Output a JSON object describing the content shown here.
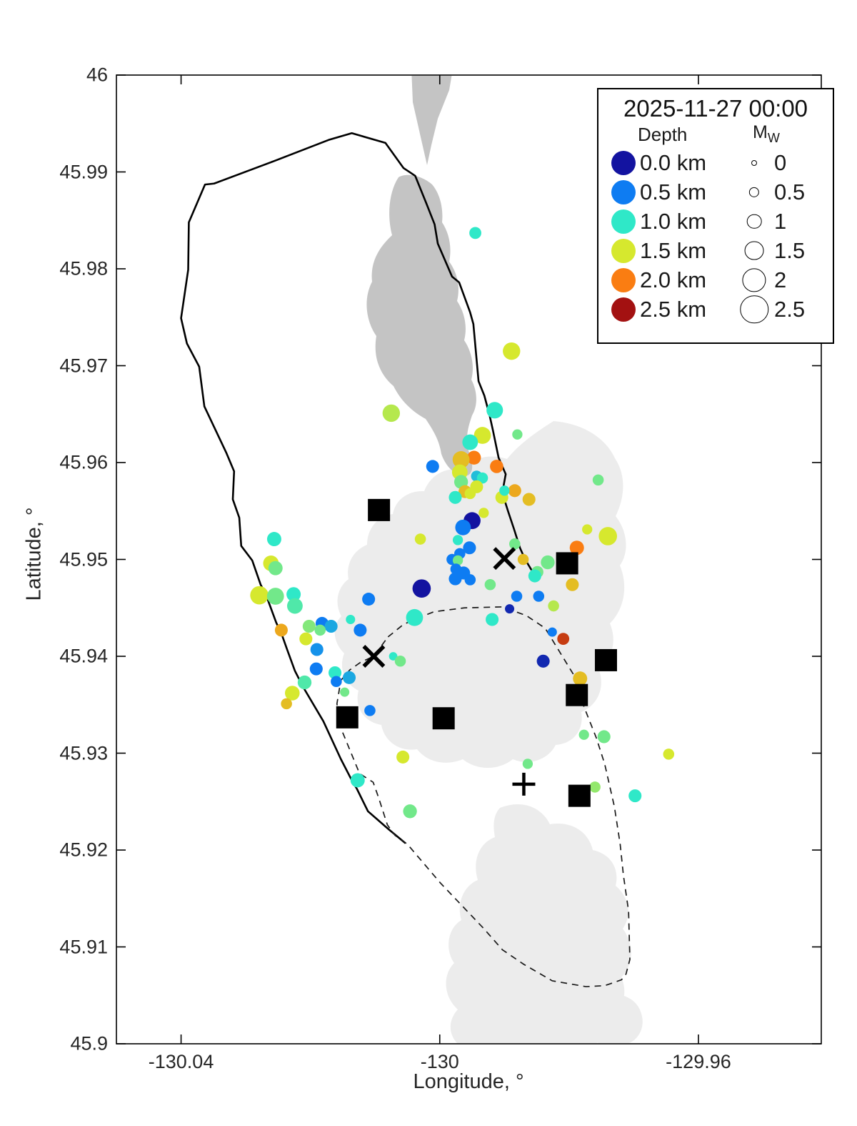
{
  "axes": {
    "xlabel": "Longitude, °",
    "ylabel": "Latitude, °",
    "xlim": [
      -130.05,
      -129.941
    ],
    "ylim": [
      45.9,
      46.0
    ],
    "x_ticks": [
      -130.04,
      -130,
      -129.96
    ],
    "x_tick_labels": [
      "-130.04",
      "-130",
      "-129.96"
    ],
    "y_ticks": [
      46,
      45.99,
      45.98,
      45.97,
      45.96,
      45.95,
      45.94,
      45.93,
      45.92,
      45.91,
      45.9
    ],
    "y_tick_labels": [
      "46",
      "45.99",
      "45.98",
      "45.97",
      "45.96",
      "45.95",
      "45.94",
      "45.93",
      "45.92",
      "45.91",
      "45.9"
    ],
    "grid": false
  },
  "legend": {
    "datetime": "2025-11-27 00:00",
    "depth_title": "Depth",
    "mag_title": "M",
    "mag_title_sub": "W",
    "depth_entries": [
      {
        "label": "0.0 km",
        "depth_km": 0.0,
        "color": "#1313A0"
      },
      {
        "label": "0.5 km",
        "depth_km": 0.5,
        "color": "#0E7CF2"
      },
      {
        "label": "1.0 km",
        "depth_km": 1.0,
        "color": "#2FE8C8"
      },
      {
        "label": "1.5 km",
        "depth_km": 1.5,
        "color": "#D6E82E"
      },
      {
        "label": "2.0 km",
        "depth_km": 2.0,
        "color": "#FA7D12"
      },
      {
        "label": "2.5 km",
        "depth_km": 2.5,
        "color": "#A31111"
      }
    ],
    "mag_entries": [
      {
        "label": "0",
        "mw": 0
      },
      {
        "label": "0.5",
        "mw": 0.5
      },
      {
        "label": "1",
        "mw": 1
      },
      {
        "label": "1.5",
        "mw": 1.5
      },
      {
        "label": "2",
        "mw": 2
      },
      {
        "label": "2.5",
        "mw": 2.5
      }
    ]
  },
  "chart_data": {
    "type": "scatter",
    "title": "2025-11-27 00:00",
    "xlabel": "Longitude, °",
    "ylabel": "Latitude, °",
    "xlim": [
      -130.05,
      -129.941
    ],
    "ylim": [
      45.9,
      46.0
    ],
    "legend_position": "upper right",
    "colormap": {
      "depths": [
        0,
        0.5,
        1.0,
        1.5,
        2.0,
        2.5
      ],
      "colors": [
        "#1313A0",
        "#0E7CF2",
        "#2FE8C8",
        "#D6E82E",
        "#FA7D12",
        "#A31111"
      ]
    },
    "size_rule": {
      "radius_px_at_mw0": 4,
      "radius_px_per_mw": 6.3
    },
    "earthquakes": {
      "columns": [
        "lon",
        "lat",
        "depth_km",
        "mw"
      ],
      "rows": [
        [
          -129.9945,
          45.9837,
          1.0,
          0.7
        ],
        [
          -129.9889,
          45.9715,
          1.5,
          1.3
        ],
        [
          -130.0075,
          45.9651,
          1.4,
          1.3
        ],
        [
          -129.9915,
          45.9654,
          1.0,
          1.2
        ],
        [
          -129.988,
          45.9629,
          1.2,
          0.5
        ],
        [
          -129.9934,
          45.9628,
          1.5,
          1.25
        ],
        [
          -129.9953,
          45.9621,
          1.0,
          1.1
        ],
        [
          -129.9947,
          45.9605,
          2.0,
          0.9
        ],
        [
          -129.9967,
          45.9603,
          1.7,
          1.25
        ],
        [
          -130.0011,
          45.9596,
          0.5,
          0.8
        ],
        [
          -129.9912,
          45.9596,
          2.0,
          0.85
        ],
        [
          -129.9969,
          45.959,
          1.5,
          1.1
        ],
        [
          -129.9943,
          45.9586,
          0.8,
          0.6
        ],
        [
          -129.9934,
          45.9584,
          1.0,
          0.6
        ],
        [
          -129.9967,
          45.958,
          1.2,
          0.9
        ],
        [
          -129.9943,
          45.9575,
          1.5,
          0.8
        ],
        [
          -129.9961,
          45.957,
          1.7,
          0.8
        ],
        [
          -129.9976,
          45.9564,
          1.0,
          0.8
        ],
        [
          -129.9953,
          45.9568,
          1.5,
          0.6
        ],
        [
          -129.9904,
          45.9564,
          1.5,
          0.8
        ],
        [
          -129.9884,
          45.9571,
          1.8,
          0.8
        ],
        [
          -129.9862,
          45.9562,
          1.7,
          0.8
        ],
        [
          -129.99,
          45.9571,
          1.0,
          0.5
        ],
        [
          -129.9932,
          45.9548,
          1.5,
          0.5
        ],
        [
          -129.995,
          45.954,
          0.0,
          1.25
        ],
        [
          -129.9964,
          45.9533,
          0.5,
          1.1
        ],
        [
          -130.003,
          45.9521,
          1.5,
          0.6
        ],
        [
          -129.9972,
          45.952,
          1.0,
          0.5
        ],
        [
          -129.9954,
          45.9512,
          0.5,
          0.8
        ],
        [
          -129.9884,
          45.9516,
          1.2,
          0.6
        ],
        [
          -129.9969,
          45.9506,
          0.5,
          0.6
        ],
        [
          -129.9981,
          45.95,
          0.5,
          0.6
        ],
        [
          -129.9972,
          45.9499,
          1.2,
          0.5
        ],
        [
          -129.9871,
          45.95,
          1.7,
          0.6
        ],
        [
          -129.9975,
          45.949,
          0.5,
          0.6
        ],
        [
          -129.9849,
          45.9487,
          1.2,
          0.7
        ],
        [
          -129.9853,
          45.9483,
          1.0,
          0.8
        ],
        [
          -129.9976,
          45.948,
          0.5,
          0.8
        ],
        [
          -129.9953,
          45.9479,
          0.5,
          0.6
        ],
        [
          -129.9963,
          45.9486,
          0.5,
          0.8
        ],
        [
          -130.0028,
          45.947,
          0.0,
          1.4
        ],
        [
          -129.9922,
          45.9474,
          1.2,
          0.6
        ],
        [
          -129.9833,
          45.9497,
          1.2,
          0.9
        ],
        [
          -129.9824,
          45.9452,
          1.4,
          0.6
        ],
        [
          -129.9847,
          45.9462,
          0.5,
          0.6
        ],
        [
          -129.9881,
          45.9462,
          0.5,
          0.6
        ],
        [
          -129.9892,
          45.9449,
          0.1,
          0.4
        ],
        [
          -129.9919,
          45.9438,
          1.0,
          0.8
        ],
        [
          -130.0039,
          45.944,
          1.0,
          1.25
        ],
        [
          -129.9826,
          45.9425,
          0.5,
          0.4
        ],
        [
          -129.9809,
          45.9418,
          2.3,
          0.7
        ],
        [
          -129.984,
          45.9395,
          0.1,
          0.8
        ],
        [
          -130.0072,
          45.94,
          1.0,
          0.3
        ],
        [
          -130.0061,
          45.9395,
          1.2,
          0.6
        ],
        [
          -130.0256,
          45.9521,
          1.0,
          0.95
        ],
        [
          -130.0261,
          45.9496,
          1.5,
          1.1
        ],
        [
          -130.0254,
          45.9491,
          1.2,
          0.95
        ],
        [
          -130.0279,
          45.9463,
          1.5,
          1.4
        ],
        [
          -130.0254,
          45.9462,
          1.2,
          1.25
        ],
        [
          -130.0226,
          45.9464,
          1.0,
          0.95
        ],
        [
          -130.0224,
          45.9452,
          1.1,
          1.1
        ],
        [
          -130.011,
          45.9459,
          0.5,
          0.8
        ],
        [
          -130.0245,
          45.9427,
          1.8,
          0.8
        ],
        [
          -130.0202,
          45.9431,
          1.25,
          0.8
        ],
        [
          -130.0182,
          45.9434,
          0.5,
          0.8
        ],
        [
          -130.0168,
          45.9431,
          0.7,
          0.8
        ],
        [
          -130.0185,
          45.9427,
          1.2,
          0.6
        ],
        [
          -130.0138,
          45.9438,
          1.0,
          0.4
        ],
        [
          -130.0123,
          45.9427,
          0.5,
          0.8
        ],
        [
          -130.0207,
          45.9418,
          1.5,
          0.8
        ],
        [
          -130.019,
          45.9407,
          0.6,
          0.8
        ],
        [
          -130.0191,
          45.9387,
          0.5,
          0.8
        ],
        [
          -130.0162,
          45.9383,
          1.0,
          0.8
        ],
        [
          -130.016,
          45.9374,
          0.5,
          0.6
        ],
        [
          -130.014,
          45.9378,
          0.7,
          0.8
        ],
        [
          -130.0209,
          45.9373,
          1.1,
          0.9
        ],
        [
          -130.0228,
          45.9362,
          1.5,
          1.0
        ],
        [
          -130.0147,
          45.9363,
          1.2,
          0.4
        ],
        [
          -130.0237,
          45.9351,
          1.7,
          0.6
        ],
        [
          -130.0108,
          45.9344,
          0.5,
          0.6
        ],
        [
          -130.0057,
          45.9296,
          1.5,
          0.8
        ],
        [
          -130.0127,
          45.9272,
          1.0,
          0.95
        ],
        [
          -130.0046,
          45.924,
          1.2,
          0.9
        ],
        [
          -129.9783,
          45.9377,
          1.7,
          0.95
        ],
        [
          -129.9777,
          45.9319,
          1.2,
          0.5
        ],
        [
          -129.9746,
          45.9317,
          1.2,
          0.8
        ],
        [
          -129.9646,
          45.9299,
          1.5,
          0.6
        ],
        [
          -129.9864,
          45.9289,
          1.2,
          0.5
        ],
        [
          -129.976,
          45.9265,
          1.3,
          0.6
        ],
        [
          -129.9698,
          45.9256,
          1.0,
          0.8
        ],
        [
          -129.9755,
          45.9582,
          1.2,
          0.6
        ],
        [
          -129.9772,
          45.9531,
          1.5,
          0.5
        ],
        [
          -129.974,
          45.9524,
          1.5,
          1.4
        ],
        [
          -129.9788,
          45.9512,
          2.0,
          0.95
        ],
        [
          -129.9806,
          45.9492,
          1.1,
          0.5
        ],
        [
          -129.9795,
          45.9474,
          1.7,
          0.8
        ]
      ]
    },
    "stations": [
      [
        -130.0094,
        45.9551
      ],
      [
        -129.9803,
        45.9496
      ],
      [
        -129.9743,
        45.9396
      ],
      [
        -129.9788,
        45.936
      ],
      [
        -130.0143,
        45.9337
      ],
      [
        -129.9994,
        45.9336
      ],
      [
        -129.9784,
        45.9256
      ]
    ],
    "x_markers": [
      [
        -129.99,
        45.9501
      ],
      [
        -130.0102,
        45.94
      ]
    ],
    "plus_markers": [
      [
        -129.987,
        45.9268
      ]
    ],
    "caldera_rim": [
      [
        -130.0053,
        45.9207
      ],
      [
        -130.008,
        45.9222
      ],
      [
        -130.0111,
        45.924
      ],
      [
        -130.0128,
        45.9263
      ],
      [
        -130.0136,
        45.9272
      ],
      [
        -130.0153,
        45.9294
      ],
      [
        -130.018,
        45.9333
      ],
      [
        -130.0211,
        45.9368
      ],
      [
        -130.0224,
        45.9385
      ],
      [
        -130.0236,
        45.9407
      ],
      [
        -130.0244,
        45.9422
      ],
      [
        -130.0253,
        45.9435
      ],
      [
        -130.0269,
        45.9464
      ],
      [
        -130.0277,
        45.9474
      ],
      [
        -130.029,
        45.9499
      ],
      [
        -130.0307,
        45.9514
      ],
      [
        -130.031,
        45.9543
      ],
      [
        -130.032,
        45.9562
      ],
      [
        -130.0318,
        45.9591
      ],
      [
        -130.033,
        45.961
      ],
      [
        -130.0364,
        45.9658
      ],
      [
        -130.0372,
        45.9699
      ],
      [
        -130.0391,
        45.9723
      ],
      [
        -130.04,
        45.9749
      ],
      [
        -130.0389,
        45.9799
      ],
      [
        -130.0388,
        45.9848
      ],
      [
        -130.0363,
        45.9887
      ],
      [
        -130.0349,
        45.9888
      ],
      [
        -130.0261,
        45.991
      ],
      [
        -130.0172,
        45.9933
      ],
      [
        -130.0136,
        45.994
      ],
      [
        -130.0084,
        45.993
      ],
      [
        -130.0056,
        45.9904
      ],
      [
        -130.0038,
        45.9896
      ],
      [
        -130.0021,
        45.9868
      ],
      [
        -130.0008,
        45.9846
      ],
      [
        -130.0003,
        45.9826
      ],
      [
        -129.9981,
        45.9792
      ],
      [
        -129.997,
        45.9786
      ],
      [
        -129.9953,
        45.9755
      ],
      [
        -129.9948,
        45.9743
      ],
      [
        -129.994,
        45.9684
      ],
      [
        -129.9931,
        45.9669
      ],
      [
        -129.9923,
        45.9649
      ],
      [
        -129.9918,
        45.9634
      ],
      [
        -129.9909,
        45.9605
      ],
      [
        -129.9898,
        45.9588
      ],
      [
        -129.9901,
        45.9577
      ],
      [
        -129.9903,
        45.9568
      ],
      [
        -129.9894,
        45.9549
      ],
      [
        -129.9885,
        45.9531
      ],
      [
        -129.9876,
        45.9512
      ],
      [
        -129.9868,
        45.95
      ],
      [
        -129.9858,
        45.9489
      ]
    ],
    "dashed_outline": [
      [
        -130.008,
        45.942
      ],
      [
        -130.0056,
        45.9433
      ],
      [
        -130.0039,
        45.9438
      ],
      [
        -130.0009,
        45.9446
      ],
      [
        -129.9962,
        45.945
      ],
      [
        -129.9903,
        45.9451
      ],
      [
        -129.9866,
        45.9442
      ],
      [
        -129.9837,
        45.9429
      ],
      [
        -129.9815,
        45.9405
      ],
      [
        -129.9793,
        45.9381
      ],
      [
        -129.9777,
        45.9348
      ],
      [
        -129.9758,
        45.9316
      ],
      [
        -129.9745,
        45.9289
      ],
      [
        -129.973,
        45.9245
      ],
      [
        -129.9721,
        45.9206
      ],
      [
        -129.9716,
        45.9174
      ],
      [
        -129.9708,
        45.9137
      ],
      [
        -129.9706,
        45.9087
      ],
      [
        -129.9712,
        45.9072
      ],
      [
        -129.9719,
        45.9066
      ],
      [
        -129.9745,
        45.906
      ],
      [
        -129.9774,
        45.9059
      ],
      [
        -129.9826,
        45.9065
      ],
      [
        -129.987,
        45.9082
      ],
      [
        -129.9903,
        45.9097
      ],
      [
        -129.9932,
        45.9119
      ],
      [
        -129.9999,
        45.9166
      ],
      [
        -130.005,
        45.9206
      ],
      [
        -130.0069,
        45.9215
      ],
      [
        -130.0081,
        45.9226
      ],
      [
        -130.0095,
        45.9255
      ],
      [
        -130.0103,
        45.927
      ],
      [
        -130.0124,
        45.9279
      ],
      [
        -130.0153,
        45.9326
      ],
      [
        -130.0159,
        45.9351
      ],
      [
        -130.0153,
        45.9375
      ],
      [
        -130.0139,
        45.9386
      ],
      [
        -130.0122,
        45.9394
      ],
      [
        -130.0102,
        45.94
      ]
    ],
    "map_patches": {
      "dark_color": "#C4C4C4",
      "light_color": "#ECECEC",
      "dark": [
        "M576,95 L634,97 L629,126 L613,166 L604,203 L598,231 L590,196 L578,143 Z",
        "M558,248 C546,266 541,298 549,329 C532,345 518,365 521,394 C508,419 513,450 527,470 C522,500 532,524 551,540 C561,560 576,575 596,586 C606,601 615,615 618,635 C625,655 640,668 655,665 C665,659 661,645 656,630 C651,611 656,596 661,581 C670,566 668,546 660,531 C665,511 660,491 650,476 C655,456 650,436 640,421 C645,401 640,381 629,366 C633,346 629,326 619,311 C621,291 616,271 605,258 C591,246 570,241 558,248 Z"
      ],
      "light": [
        "M775,589 C815,592 848,612 861,641 C879,668 873,700 862,722 C878,742 882,771 868,791 C880,820 874,852 854,872 C864,896 858,921 838,935 C848,960 838,986 814,996 C818,1020 804,1040 778,1042 C768,1062 742,1072 718,1062 C698,1078 668,1078 648,1062 C624,1072 598,1066 584,1048 C558,1052 538,1036 534,1014 C510,1010 496,990 502,966 C482,956 474,934 482,914 C466,898 464,876 478,862 C468,844 472,822 488,810 C484,790 494,770 514,762 C514,740 528,722 550,719 C554,698 572,686 594,687 C602,666 622,653 646,657 C662,640 686,634 710,642 C726,622 748,606 775,589 Z",
        "M700,1130 C730,1118 758,1128 770,1153 C800,1148 824,1163 830,1189 C854,1194 868,1214 862,1239 C880,1254 886,1279 872,1299 C888,1320 888,1349 870,1367 C880,1390 872,1414 851,1424 C856,1444 846,1458 831,1460 L641,1460 C626,1445 629,1425 641,1412 C621,1394 619,1364 636,1347 C623,1329 626,1299 646,1287 C639,1264 649,1239 669,1231 C661,1204 671,1179 693,1171 C689,1149 693,1138 700,1130 Z",
        "M845,1395 C865,1385 890,1395 897,1415 C905,1435 895,1455 878,1460 L838,1460 C830,1440 833,1408 845,1395 Z"
      ]
    }
  }
}
